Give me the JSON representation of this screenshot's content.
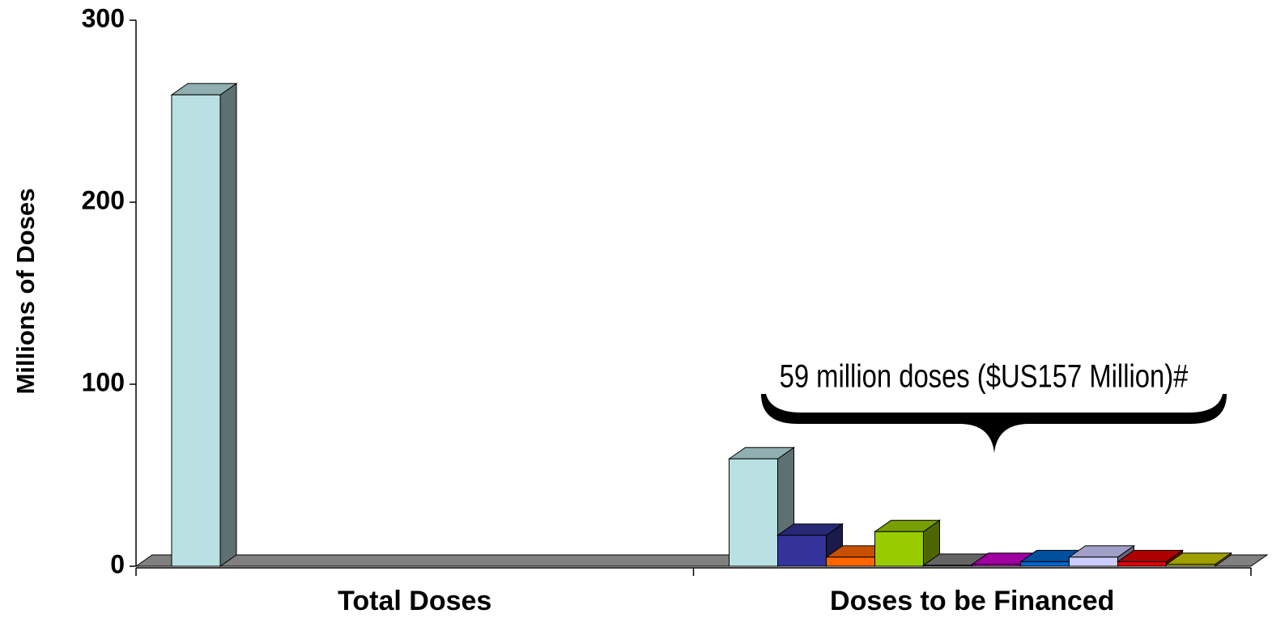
{
  "chart_data": {
    "type": "bar3d",
    "y_label": "Millions of Doses",
    "categories": [
      "Total Doses",
      "Doses to be Financed"
    ],
    "series": [
      {
        "color": "#b9e0e3",
        "values": [
          259,
          59
        ]
      },
      {
        "color": "#333399",
        "values": [
          null,
          17
        ]
      },
      {
        "color": "#ff6600",
        "values": [
          null,
          5
        ]
      },
      {
        "color": "#99cc00",
        "values": [
          null,
          19
        ]
      },
      {
        "color": "#808080",
        "values": [
          null,
          0.5
        ]
      },
      {
        "color": "#cc00cc",
        "values": [
          null,
          1
        ]
      },
      {
        "color": "#0066cc",
        "values": [
          null,
          2.5
        ]
      },
      {
        "color": "#ccccff",
        "values": [
          null,
          5
        ]
      },
      {
        "color": "#e00000",
        "values": [
          null,
          2.5
        ]
      },
      {
        "color": "#cccc00",
        "values": [
          null,
          1
        ]
      }
    ],
    "ylim": [
      0,
      300
    ],
    "yticks": [
      0,
      100,
      200,
      300
    ],
    "annotation": "59 million doses ($US157 Million)#"
  }
}
